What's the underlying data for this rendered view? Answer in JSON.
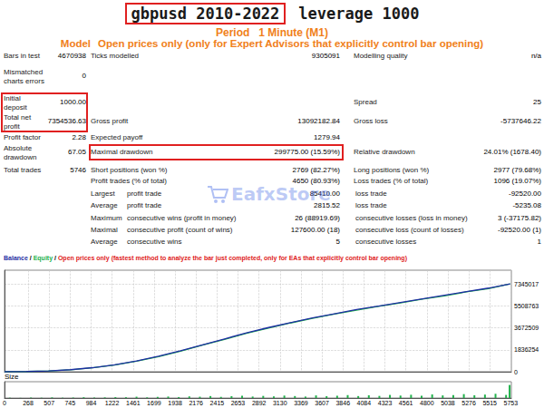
{
  "header": {
    "title": {
      "boxed": "gbpusd 2010-2022",
      "rest": "leverage 1000"
    },
    "period": {
      "label": "Period",
      "value": "1 Minute (M1)"
    },
    "model": {
      "label": "Model",
      "value": "Open prices only (only for Expert Advisors that explicitly control bar opening)"
    }
  },
  "report": {
    "rows": [
      [
        {
          "label": "Bars in test",
          "value": "4670938"
        },
        {
          "label": "Ticks modelled",
          "value": "9305091"
        },
        {
          "label": "Modelling quality",
          "value": "n/a"
        }
      ],
      [
        {
          "label": "Mismatched charts errors",
          "value": "0"
        },
        null,
        null
      ],
      [
        {
          "label": "Initial deposit",
          "value": "1000.00"
        },
        null,
        {
          "label": "Spread",
          "value": "25"
        }
      ],
      [
        {
          "label": "Total net profit",
          "value": "7354536.63"
        },
        {
          "label": "Gross profit",
          "value": "13092182.84"
        },
        {
          "label": "Gross loss",
          "value": "-5737646.22"
        }
      ],
      [
        {
          "label": "Profit factor",
          "value": "2.28"
        },
        {
          "label": "Expected payoff",
          "value": "1279.94"
        },
        null
      ],
      [
        {
          "label": "Absolute drawdown",
          "value": "67.05"
        },
        {
          "label": "Maximal drawdown",
          "value": "299775.00 (15.59%)"
        },
        {
          "label": "Relative drawdown",
          "value": "24.01% (1678.40)"
        }
      ],
      [
        {
          "label": "Total trades",
          "value": "5746"
        },
        {
          "label": "Short positions (won %)",
          "value": "2769 (82.27%)"
        },
        {
          "label": "Long positions (won %)",
          "value": "2977 (79.68%)"
        }
      ],
      [
        null,
        {
          "label": "Profit trades (% of total)",
          "value": "4650 (80.93%)"
        },
        {
          "label": "Loss trades (% of total)",
          "value": "1096 (19.07%)"
        }
      ],
      [
        {
          "label": "Largest"
        },
        {
          "label": "profit trade",
          "value": "85410.00"
        },
        {
          "label": "loss trade",
          "value": "-92520.00"
        }
      ],
      [
        {
          "label": "Average"
        },
        {
          "label": "profit trade",
          "value": "2815.52"
        },
        {
          "label": "loss trade",
          "value": "-5235.08"
        }
      ],
      [
        {
          "label": "Maximum"
        },
        {
          "label": "consecutive wins (profit in money)",
          "value": "26 (88919.69)"
        },
        {
          "label": "consecutive losses (loss in money)",
          "value": "3 (-37175.82)"
        }
      ],
      [
        {
          "label": "Maximal"
        },
        {
          "label": "consecutive profit (count of wins)",
          "value": "127600.00 (18)"
        },
        {
          "label": "consecutive loss (count of losses)",
          "value": "-92520.00 (1)"
        }
      ],
      [
        {
          "label": "Average"
        },
        {
          "label": "consecutive wins",
          "value": "5"
        },
        {
          "label": "consecutive losses",
          "value": "1"
        }
      ]
    ]
  },
  "watermark": "EafxStore",
  "chart_data": [
    {
      "type": "line",
      "note": "Open prices only (fastest method to analyze the bar just completed, only for EAs that explicitly control bar opening)",
      "separator": " / ",
      "x": [
        0,
        250,
        500,
        750,
        1000,
        1250,
        1500,
        1750,
        2000,
        2250,
        2500,
        2750,
        3000,
        3250,
        3500,
        3750,
        4000,
        4250,
        4500,
        4750,
        5000,
        5250,
        5500,
        5746
      ],
      "series": [
        {
          "name": "Balance",
          "color": "#1f2fa3",
          "values": [
            1000,
            20000,
            70000,
            170000,
            340000,
            580000,
            900000,
            1300000,
            1750000,
            2250000,
            2750000,
            3250000,
            3700000,
            4100000,
            4500000,
            4850000,
            5200000,
            5500000,
            5800000,
            6100000,
            6400000,
            6700000,
            7000000,
            7355536.63
          ]
        },
        {
          "name": "Equity",
          "color": "#22b14c",
          "values": [
            1000,
            18000,
            66000,
            160000,
            330000,
            565000,
            880000,
            1270000,
            1720000,
            2230000,
            2700000,
            3220000,
            3650000,
            4080000,
            4460000,
            4830000,
            5150000,
            5480000,
            5760000,
            6080000,
            6350000,
            6680000,
            6950000,
            7355536.63
          ]
        }
      ],
      "xlim": [
        0,
        5760
      ],
      "xticks": [
        0,
        268,
        507,
        745,
        984,
        1222,
        1461,
        1699,
        1938,
        2176,
        2415,
        2653,
        2892,
        3130,
        3369,
        3607,
        3846,
        4084,
        4323,
        4561,
        4800,
        5038,
        5276,
        5515,
        5753
      ],
      "ylim": [
        0,
        8500000
      ],
      "yticks": [
        0,
        1836254,
        3672509,
        5508763,
        7345017
      ],
      "grid": true,
      "tick_labels": "y"
    },
    {
      "type": "bar",
      "title": "Size",
      "x": [
        60,
        180,
        300,
        420,
        540,
        660,
        780,
        900,
        1020,
        1140,
        1260,
        1380,
        1500,
        1620,
        1740,
        1860,
        1980,
        2100,
        2220,
        2340,
        2460,
        2580,
        2700,
        2820,
        2940,
        3060,
        3180,
        3300,
        3420,
        3540,
        3660,
        3780,
        3900,
        4020,
        4140,
        4260,
        4380,
        4500,
        4620,
        4740,
        4860,
        4980,
        5100,
        5220,
        5340,
        5460,
        5580,
        5700,
        5740
      ],
      "values": [
        2,
        1,
        3,
        2,
        4,
        2,
        3,
        5,
        3,
        4,
        6,
        5,
        8,
        4,
        7,
        9,
        6,
        10,
        8,
        12,
        7,
        11,
        14,
        9,
        13,
        10,
        15,
        12,
        9,
        16,
        11,
        14,
        18,
        12,
        17,
        13,
        19,
        15,
        20,
        14,
        22,
        16,
        18,
        24,
        17,
        21,
        26,
        19,
        80
      ],
      "color": "#22b14c",
      "xlim": [
        0,
        5760
      ],
      "xticks": [
        0,
        268,
        507,
        745,
        984,
        1222,
        1461,
        1699,
        1938,
        2176,
        2415,
        2653,
        2892,
        3130,
        3369,
        3607,
        3846,
        4084,
        4323,
        4561,
        4800,
        5038,
        5276,
        5515,
        5753
      ],
      "ylim": [
        0,
        100
      ],
      "grid": false,
      "tick_labels": "x"
    }
  ]
}
